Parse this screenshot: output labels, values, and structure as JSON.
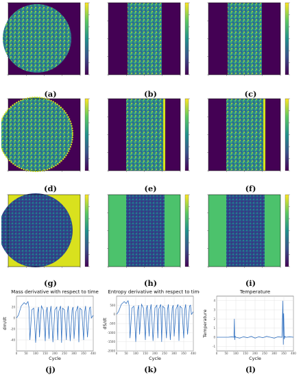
{
  "panels": {
    "a": {
      "label": "(a)"
    },
    "b": {
      "label": "(b)"
    },
    "c": {
      "label": "(c)"
    },
    "d": {
      "label": "(d)"
    },
    "e": {
      "label": "(e)"
    },
    "f": {
      "label": "(f)"
    },
    "g": {
      "label": "(g)"
    },
    "h": {
      "label": "(h)"
    },
    "i": {
      "label": "(i)"
    },
    "j": {
      "label": "(j)"
    },
    "k": {
      "label": "(k)"
    },
    "l": {
      "label": "(l)"
    }
  },
  "colormap": [
    "#440154",
    "#3b528b",
    "#21918c",
    "#5ec962",
    "#fde725"
  ],
  "chart_data": [
    {
      "type": "line",
      "panel": "j",
      "title": "Mass derivative with respect to time",
      "xlabel": "Cycle",
      "ylabel": "dm/dt",
      "xlim": [
        0,
        400
      ],
      "ylim": [
        -60,
        40
      ],
      "xticks": [
        "0",
        "50",
        "100",
        "150",
        "200",
        "250",
        "300",
        "350",
        "400"
      ],
      "yticks": [
        "20",
        "0",
        "-20",
        "-40"
      ],
      "grid": true,
      "series": [
        {
          "x": [
            0,
            10,
            25,
            40,
            50,
            60,
            65,
            70,
            80,
            90,
            95,
            100,
            110,
            115,
            120,
            130,
            140,
            150,
            155,
            160,
            170,
            175,
            180,
            190,
            200,
            210,
            215,
            220,
            230,
            235,
            240,
            250,
            260,
            265,
            270,
            280,
            290,
            295,
            300,
            310,
            320,
            325,
            330,
            340,
            350,
            355,
            360,
            370,
            380,
            385,
            390,
            400
          ],
          "y": [
            0,
            5,
            22,
            28,
            25,
            30,
            20,
            -40,
            15,
            18,
            -10,
            -45,
            10,
            20,
            -35,
            22,
            15,
            -42,
            12,
            20,
            -38,
            10,
            22,
            -44,
            15,
            20,
            -40,
            12,
            22,
            -45,
            18,
            15,
            -40,
            10,
            22,
            -42,
            15,
            20,
            -38,
            12,
            22,
            -44,
            18,
            15,
            -40,
            10,
            22,
            -35,
            18,
            20,
            0,
            5
          ]
        }
      ]
    },
    {
      "type": "line",
      "panel": "k",
      "title": "Entropy derivative with respect to time",
      "xlabel": "Cycle",
      "ylabel": "dS/dt",
      "xlim": [
        0,
        400
      ],
      "ylim": [
        -2000,
        1000
      ],
      "xticks": [
        "0",
        "50",
        "100",
        "150",
        "200",
        "250",
        "300",
        "350",
        "400"
      ],
      "yticks": [
        "500",
        "0",
        "-500",
        "-1000",
        "-1500",
        "-2000"
      ],
      "grid": true,
      "series": [
        {
          "x": [
            0,
            10,
            25,
            40,
            50,
            60,
            65,
            70,
            80,
            90,
            95,
            100,
            110,
            115,
            120,
            130,
            140,
            150,
            155,
            160,
            170,
            175,
            180,
            190,
            200,
            210,
            215,
            220,
            230,
            235,
            240,
            250,
            260,
            265,
            270,
            280,
            290,
            295,
            300,
            310,
            320,
            325,
            330,
            340,
            350,
            355,
            360,
            370,
            380,
            385,
            390,
            400
          ],
          "y": [
            0,
            150,
            550,
            700,
            600,
            750,
            500,
            -1300,
            350,
            450,
            -300,
            -1500,
            250,
            500,
            -1100,
            550,
            350,
            -1400,
            300,
            500,
            -1200,
            250,
            550,
            -1450,
            350,
            500,
            -1300,
            300,
            550,
            -1500,
            450,
            350,
            -1300,
            250,
            550,
            -1400,
            350,
            500,
            -1200,
            300,
            550,
            -1450,
            450,
            350,
            -1300,
            250,
            550,
            -1100,
            450,
            500,
            0,
            150
          ]
        }
      ]
    },
    {
      "type": "line",
      "panel": "l",
      "title": "Temperature",
      "xlabel": "Cycle",
      "ylabel": "Temperature",
      "xlim": [
        0,
        400
      ],
      "ylim": [
        -1.5,
        4.5
      ],
      "xticks": [
        "0",
        "50",
        "100",
        "150",
        "200",
        "250",
        "300",
        "350",
        "400"
      ],
      "yticks": [
        "4",
        "3",
        "2",
        "1",
        "0",
        "-1"
      ],
      "grid": true,
      "series": [
        {
          "x": [
            0,
            60,
            80,
            90,
            92,
            94,
            96,
            100,
            120,
            140,
            160,
            180,
            200,
            220,
            240,
            260,
            280,
            300,
            320,
            340,
            345,
            347,
            349,
            352,
            355,
            360,
            380,
            400
          ],
          "y": [
            0,
            0,
            0.05,
            0,
            2.0,
            -0.3,
            0.1,
            0,
            -0.1,
            0.05,
            -0.05,
            0.1,
            -0.1,
            0.05,
            -0.05,
            0.1,
            0,
            -0.1,
            0.05,
            0,
            4.0,
            -0.8,
            2.6,
            -0.2,
            0.1,
            0,
            0.05,
            0
          ]
        }
      ]
    }
  ]
}
